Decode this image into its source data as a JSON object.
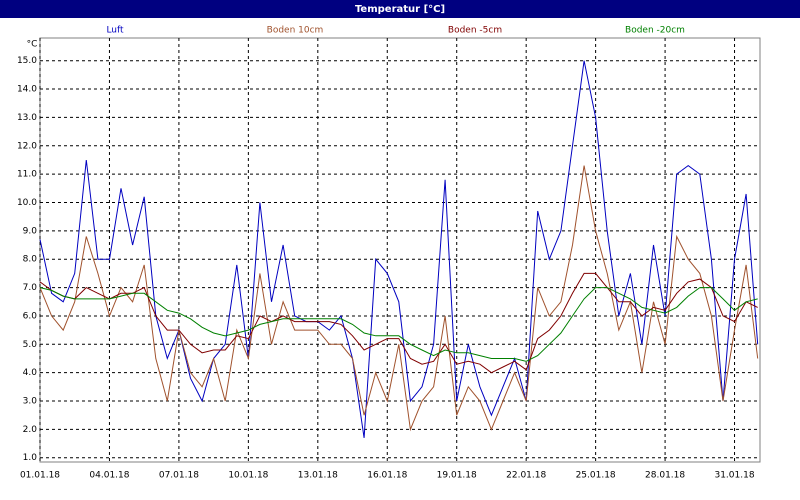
{
  "chart_data": {
    "type": "line",
    "title": "Temperatur [°C]",
    "y_label": "°C",
    "x": [
      0,
      0.5,
      1,
      1.5,
      2,
      2.5,
      3,
      3.5,
      4,
      4.5,
      5,
      5.5,
      6,
      6.5,
      7,
      7.5,
      8,
      8.5,
      9,
      9.5,
      10,
      10.5,
      11,
      11.5,
      12,
      12.5,
      13,
      13.5,
      14,
      14.5,
      15,
      15.5,
      16,
      16.5,
      17,
      17.5,
      18,
      18.5,
      19,
      19.5,
      20,
      20.5,
      21,
      21.5,
      22,
      22.5,
      23,
      23.5,
      24,
      24.5,
      25,
      25.5,
      26,
      26.5,
      27,
      27.5,
      28,
      28.5,
      29,
      29.5,
      30,
      30.5,
      31
    ],
    "series": [
      {
        "name": "Luft",
        "color": "#0000c0",
        "values": [
          8.7,
          6.8,
          6.5,
          7.5,
          11.5,
          8.0,
          8.0,
          10.5,
          8.5,
          10.2,
          6.0,
          4.5,
          5.5,
          3.8,
          3.0,
          4.5,
          5.0,
          7.8,
          4.5,
          10.0,
          6.5,
          8.5,
          6.0,
          5.8,
          5.8,
          5.5,
          6.0,
          4.5,
          1.7,
          8.0,
          7.5,
          6.5,
          3.0,
          3.5,
          5.0,
          10.8,
          3.0,
          5.0,
          3.5,
          2.5,
          3.5,
          4.5,
          3.0,
          9.7,
          8.0,
          9.0,
          12.0,
          15.0,
          13.0,
          9.0,
          6.0,
          7.5,
          5.0,
          8.5,
          6.0,
          11.0,
          11.3,
          11.0,
          8.0,
          3.0,
          8.0,
          10.3,
          5.0
        ]
      },
      {
        "name": "Boden 10cm",
        "color": "#a0522d",
        "values": [
          7.0,
          6.0,
          5.5,
          6.5,
          8.8,
          7.5,
          6.0,
          7.0,
          6.5,
          7.8,
          4.5,
          3.0,
          5.5,
          4.0,
          3.5,
          4.5,
          3.0,
          5.5,
          4.5,
          7.5,
          5.0,
          6.5,
          5.5,
          5.5,
          5.5,
          5.0,
          5.0,
          4.5,
          2.5,
          4.0,
          3.0,
          5.0,
          2.0,
          3.0,
          3.5,
          6.0,
          2.5,
          3.5,
          3.0,
          2.0,
          3.0,
          4.0,
          3.0,
          7.0,
          6.0,
          6.5,
          8.5,
          11.3,
          9.0,
          7.5,
          5.5,
          6.5,
          4.0,
          6.5,
          5.0,
          8.8,
          8.0,
          7.5,
          6.0,
          3.0,
          5.5,
          7.8,
          4.5
        ]
      },
      {
        "name": "Boden -5cm",
        "color": "#800000",
        "values": [
          7.2,
          6.9,
          6.7,
          6.6,
          7.0,
          6.8,
          6.6,
          6.8,
          6.8,
          7.0,
          6.0,
          5.5,
          5.5,
          5.0,
          4.7,
          4.8,
          4.8,
          5.3,
          5.2,
          6.0,
          5.8,
          6.0,
          5.8,
          5.8,
          5.8,
          5.8,
          5.7,
          5.3,
          4.8,
          5.0,
          5.2,
          5.2,
          4.5,
          4.3,
          4.4,
          5.0,
          4.3,
          4.4,
          4.3,
          4.0,
          4.2,
          4.4,
          4.1,
          5.2,
          5.5,
          6.0,
          6.8,
          7.5,
          7.5,
          7.0,
          6.5,
          6.5,
          6.0,
          6.3,
          6.2,
          6.8,
          7.2,
          7.3,
          7.0,
          6.0,
          5.8,
          6.5,
          6.3
        ]
      },
      {
        "name": "Boden -20cm",
        "color": "#008000",
        "values": [
          7.0,
          6.9,
          6.7,
          6.6,
          6.6,
          6.6,
          6.6,
          6.7,
          6.8,
          6.8,
          6.5,
          6.2,
          6.1,
          5.9,
          5.6,
          5.4,
          5.3,
          5.4,
          5.5,
          5.7,
          5.8,
          5.9,
          5.9,
          5.9,
          5.9,
          5.9,
          5.9,
          5.7,
          5.4,
          5.3,
          5.3,
          5.3,
          5.0,
          4.8,
          4.6,
          4.8,
          4.7,
          4.7,
          4.6,
          4.5,
          4.5,
          4.5,
          4.4,
          4.6,
          5.0,
          5.4,
          6.0,
          6.6,
          7.0,
          7.0,
          6.8,
          6.6,
          6.3,
          6.2,
          6.1,
          6.3,
          6.7,
          7.0,
          7.0,
          6.6,
          6.2,
          6.5,
          6.6
        ]
      }
    ],
    "xlim": [
      0,
      31.1
    ],
    "xticks": [
      {
        "value": 0,
        "label": "01.01.18"
      },
      {
        "value": 3,
        "label": "04.01.18"
      },
      {
        "value": 6,
        "label": "07.01.18"
      },
      {
        "value": 9,
        "label": "10.01.18"
      },
      {
        "value": 12,
        "label": "13.01.18"
      },
      {
        "value": 15,
        "label": "16.01.18"
      },
      {
        "value": 18,
        "label": "19.01.18"
      },
      {
        "value": 21,
        "label": "22.01.18"
      },
      {
        "value": 24,
        "label": "25.01.18"
      },
      {
        "value": 27,
        "label": "28.01.18"
      },
      {
        "value": 30,
        "label": "31.01.18"
      }
    ],
    "ylim": [
      0.85,
      15.8
    ],
    "yticks": [
      {
        "value": 1,
        "label": "1.0"
      },
      {
        "value": 2,
        "label": "2.0"
      },
      {
        "value": 3,
        "label": "3.0"
      },
      {
        "value": 4,
        "label": "4.0"
      },
      {
        "value": 5,
        "label": "5.0"
      },
      {
        "value": 6,
        "label": "6.0"
      },
      {
        "value": 7,
        "label": "7.0"
      },
      {
        "value": 8,
        "label": "8.0"
      },
      {
        "value": 9,
        "label": "9.0"
      },
      {
        "value": 10,
        "label": "10.0"
      },
      {
        "value": 11,
        "label": "11.0"
      },
      {
        "value": 12,
        "label": "12.0"
      },
      {
        "value": 13,
        "label": "13.0"
      },
      {
        "value": 14,
        "label": "14.0"
      },
      {
        "value": 15,
        "label": "15.0"
      }
    ],
    "grid": true,
    "legend": "top"
  }
}
